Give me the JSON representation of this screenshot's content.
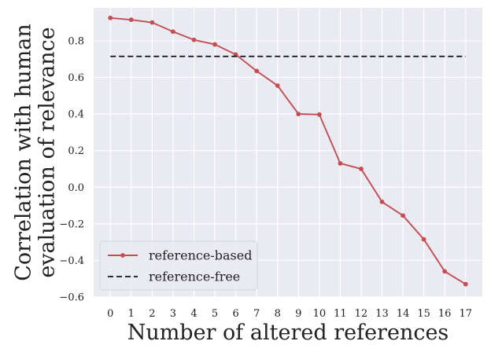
{
  "chart_data": {
    "type": "line",
    "title": "",
    "xlabel": "Number of altered references",
    "ylabel_lines": [
      "Correlation with human",
      "evaluation of relevance"
    ],
    "x": [
      0,
      1,
      2,
      3,
      4,
      5,
      6,
      7,
      8,
      9,
      10,
      11,
      12,
      13,
      14,
      15,
      16,
      17
    ],
    "xlim": [
      -0.8,
      17.8
    ],
    "ylim": [
      -0.6,
      0.98
    ],
    "yticks": [
      -0.6,
      -0.4,
      -0.2,
      0.0,
      0.2,
      0.4,
      0.6,
      0.8
    ],
    "ytick_labels": [
      "−0.6",
      "−0.4",
      "−0.2",
      "0.0",
      "0.2",
      "0.4",
      "0.6",
      "0.8"
    ],
    "xtick_labels": [
      "0",
      "1",
      "2",
      "3",
      "4",
      "5",
      "6",
      "7",
      "8",
      "9",
      "10",
      "11",
      "12",
      "13",
      "14",
      "15",
      "16",
      "17"
    ],
    "grid": true,
    "legend_position": "bottom-left",
    "series": [
      {
        "name": "reference-based",
        "color": "#c44e52",
        "style": "solid-with-markers",
        "values": [
          0.925,
          0.915,
          0.9,
          0.85,
          0.805,
          0.78,
          0.725,
          0.635,
          0.555,
          0.4,
          0.397,
          0.13,
          0.1,
          -0.08,
          -0.155,
          -0.285,
          -0.46,
          -0.53
        ]
      },
      {
        "name": "reference-free",
        "color": "#111111",
        "style": "dashed",
        "values": [
          0.715,
          0.715,
          0.715,
          0.715,
          0.715,
          0.715,
          0.715,
          0.715,
          0.715,
          0.715,
          0.715,
          0.715,
          0.715,
          0.715,
          0.715,
          0.715,
          0.715,
          0.715
        ]
      }
    ],
    "plot_background": "#eaeaf2",
    "grid_color": "#ffffff"
  }
}
